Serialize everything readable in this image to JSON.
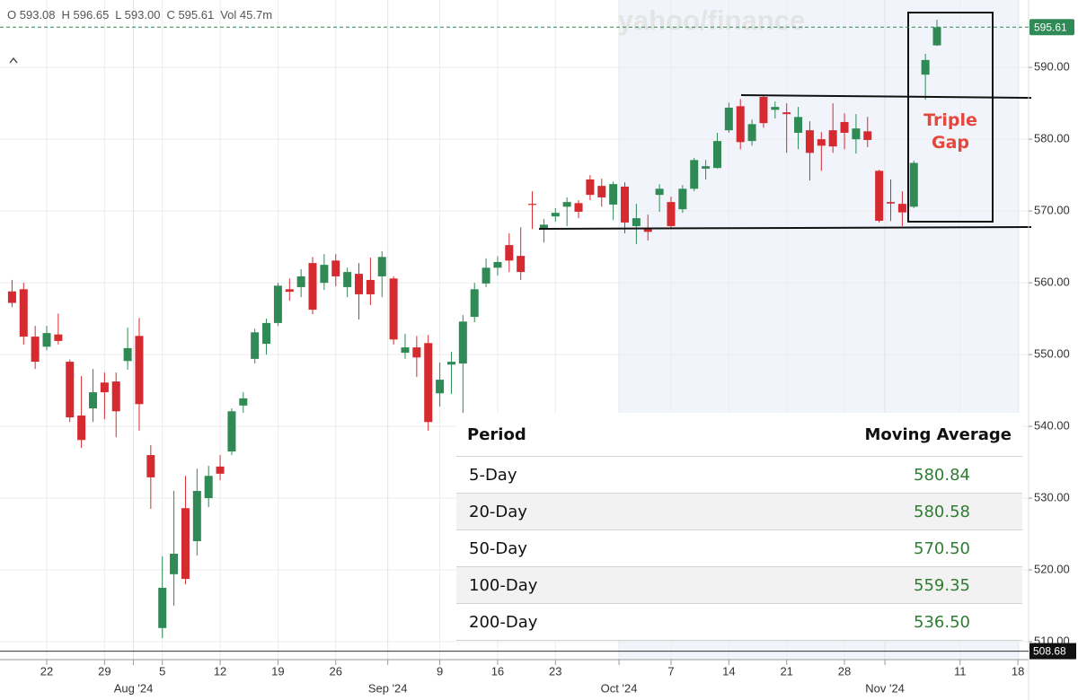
{
  "chart_data": {
    "type": "candlestick",
    "ohlc_legend": [
      {
        "label": "O",
        "value": "593.08"
      },
      {
        "label": "H",
        "value": "596.65"
      },
      {
        "label": "L",
        "value": "593.00"
      },
      {
        "label": "C",
        "value": "595.61"
      },
      {
        "label": "Vol",
        "value": "45.7m"
      }
    ],
    "watermark": "yahoo/finance",
    "annotation": "Triple Gap",
    "up_color": "#2f8a55",
    "down_color": "#d42a30",
    "categories": [
      null,
      null,
      null,
      "22",
      null,
      null,
      null,
      null,
      "29",
      null,
      null,
      null,
      null,
      "5",
      null,
      null,
      null,
      null,
      "12",
      null,
      null,
      null,
      null,
      "19",
      null,
      null,
      null,
      null,
      "26",
      null,
      null,
      null,
      null,
      null,
      null,
      null,
      null,
      "9",
      null,
      null,
      null,
      null,
      "16",
      null,
      null,
      null,
      null,
      "23",
      null,
      null,
      null,
      null,
      null,
      null,
      null,
      null,
      null,
      "7",
      null,
      null,
      null,
      null,
      "14",
      null,
      null,
      null,
      null,
      "21",
      null,
      null,
      null,
      null,
      "28",
      null,
      null,
      null,
      null,
      null,
      null,
      null,
      null,
      null,
      "11",
      null,
      null,
      null,
      null,
      "18"
    ],
    "month_labels": [
      null,
      null,
      null,
      null,
      null,
      null,
      null,
      null,
      null,
      null,
      null,
      "Aug '24",
      null,
      null,
      null,
      null,
      null,
      null,
      null,
      null,
      null,
      null,
      null,
      null,
      null,
      null,
      null,
      null,
      null,
      null,
      null,
      null,
      null,
      "Sep '24",
      null,
      null,
      null,
      null,
      null,
      null,
      null,
      null,
      null,
      null,
      null,
      null,
      null,
      null,
      null,
      null,
      null,
      null,
      null,
      "Oct '24",
      null,
      null,
      null,
      null,
      null,
      null,
      null,
      null,
      null,
      null,
      null,
      null,
      null,
      null,
      null,
      null,
      null,
      null,
      null,
      null,
      null,
      null,
      "Nov '24",
      null,
      null,
      null,
      null,
      null,
      null,
      null,
      null,
      null,
      null,
      null
    ],
    "open": [
      558.8,
      559.1,
      552.5,
      551.1,
      552.8,
      549,
      541.5,
      542.5,
      546.1,
      546.25,
      549.1,
      552.6,
      536,
      511.9,
      519.4,
      528.6,
      524,
      530,
      534.4,
      536.5,
      542.9,
      549.4,
      551.5,
      554.4,
      559.1,
      559.4,
      562.75,
      560,
      563.1,
      559.4,
      561.25,
      560.4,
      560.9,
      560.6,
      550.25,
      551,
      551.6,
      544.6,
      548.6,
      548.75,
      555.25,
      559.9,
      562.1,
      565.25,
      563.75,
      571,
      567.4,
      569.25,
      570.6,
      571.1,
      574.4,
      573.5,
      570.9,
      573.4,
      567.9,
      567.5,
      572.25,
      571.25,
      570.25,
      573.1,
      575.9,
      576,
      581.25,
      584.6,
      579.75,
      585.9,
      584.1,
      583.75,
      580.9,
      581.25,
      580,
      581.25,
      582.4,
      580,
      581.1,
      575.6,
      571.25,
      571,
      570.6,
      589,
      593.08,
      null,
      null,
      null,
      null,
      null,
      null,
      null
    ],
    "high": [
      560.4,
      560,
      554,
      554,
      555.7,
      549.3,
      547,
      548,
      547.5,
      547.5,
      553.75,
      555.1,
      537.4,
      521.9,
      531,
      533.1,
      534.1,
      534.5,
      536,
      542.5,
      544.75,
      553.6,
      555,
      560,
      560.6,
      561.9,
      563.6,
      564,
      564,
      562.1,
      562.75,
      563.5,
      564.4,
      560.9,
      552.9,
      552.6,
      552.75,
      548.9,
      550.4,
      555.5,
      560,
      563.4,
      563.7,
      566.9,
      567.75,
      572.75,
      568.9,
      570.4,
      571.9,
      571.5,
      575,
      574.5,
      574.1,
      574,
      571,
      569.5,
      573.75,
      572,
      573.6,
      577.4,
      577.1,
      580.9,
      585.1,
      585.6,
      582.75,
      586.1,
      585.25,
      585,
      584.5,
      582.5,
      581,
      585,
      583.6,
      583.5,
      583.1,
      575.75,
      574.4,
      572.75,
      577,
      591.9,
      596.65,
      null,
      null,
      null,
      null,
      null,
      null,
      null
    ],
    "low": [
      556.6,
      551.4,
      548,
      550.6,
      551.4,
      540.6,
      537,
      540.6,
      541,
      538.5,
      547.9,
      539.4,
      528.5,
      510.5,
      515,
      518,
      522,
      528.75,
      532.5,
      536,
      541.9,
      548.75,
      550,
      554,
      557.5,
      558,
      555.6,
      559,
      559.5,
      558,
      554.9,
      556.9,
      558,
      551.4,
      549.4,
      546.9,
      539.4,
      542.75,
      544.5,
      539.6,
      554.5,
      559.4,
      561,
      561.5,
      560.4,
      567.5,
      565.6,
      568.5,
      567.9,
      569,
      571.5,
      570.6,
      568.75,
      566.9,
      565.4,
      565.9,
      569.9,
      567.5,
      569.75,
      572.75,
      574.4,
      575.9,
      580.9,
      578.6,
      579.1,
      581.6,
      582.9,
      578.1,
      578.6,
      574.25,
      575.6,
      578.1,
      578.6,
      578,
      578.9,
      568.4,
      568.6,
      567.9,
      570.4,
      585.5,
      593,
      null,
      null,
      null,
      null,
      null,
      null,
      null
    ],
    "close": [
      557.2,
      552.5,
      549,
      553,
      551.9,
      541.25,
      538.1,
      544.75,
      544.75,
      542.1,
      550.9,
      543.1,
      532.9,
      517.5,
      522.25,
      518.75,
      531,
      533.1,
      533.4,
      542.1,
      543.9,
      553.1,
      554.4,
      559.6,
      558.75,
      560.9,
      556.25,
      562.5,
      560.9,
      561.5,
      558.4,
      558.4,
      563.6,
      552.1,
      551,
      549.6,
      540.6,
      546.5,
      549,
      554.6,
      559.1,
      562.1,
      562.9,
      563.1,
      561.5,
      570.9,
      568.1,
      569.75,
      571.25,
      569.9,
      572.25,
      571.9,
      573.75,
      568.4,
      569,
      567.1,
      573.1,
      567.9,
      573.1,
      577.1,
      576.25,
      579.75,
      584.4,
      579.6,
      582.1,
      582.25,
      584.5,
      583.5,
      583.1,
      578.1,
      579.1,
      579,
      580.9,
      581.5,
      579.9,
      568.64,
      571.04,
      569.81,
      576.7,
      591.04,
      595.61,
      null,
      null,
      null,
      null,
      null,
      null,
      null
    ],
    "ylim": [
      507.5,
      599.4
    ],
    "yticks": [
      {
        "value": 510,
        "label": "510.00"
      },
      {
        "value": 520,
        "label": "520.00"
      },
      {
        "value": 530,
        "label": "530.00"
      },
      {
        "value": 540,
        "label": "540.00"
      },
      {
        "value": 550,
        "label": "550.00"
      },
      {
        "value": 560,
        "label": "560.00"
      },
      {
        "value": 570,
        "label": "570.00"
      },
      {
        "value": 580,
        "label": "580.00"
      },
      {
        "value": 590,
        "label": "590.00"
      }
    ],
    "last_price": {
      "value": 595.61,
      "label": "595.61"
    },
    "crosshair_price": {
      "value": 508.68,
      "label": "508.68"
    },
    "grid": true
  },
  "table": {
    "columns": [
      "Period",
      "Moving Average"
    ],
    "rows": [
      [
        "5-Day",
        "580.84"
      ],
      [
        "20-Day",
        "580.58"
      ],
      [
        "50-Day",
        "570.50"
      ],
      [
        "100-Day",
        "559.35"
      ],
      [
        "200-Day",
        "536.50"
      ]
    ]
  }
}
